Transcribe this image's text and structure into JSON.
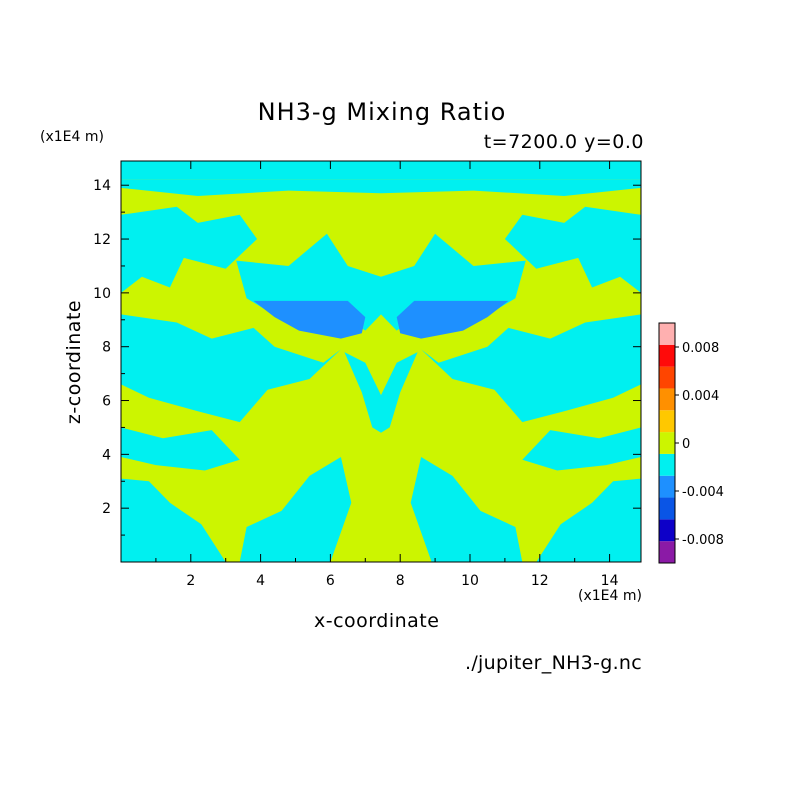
{
  "chart_data": {
    "type": "heatmap",
    "title": "NH3-g Mixing Ratio",
    "subtitle": "t=7200.0 y=0.0",
    "xlabel": "x-coordinate",
    "ylabel": "z-coordinate",
    "x_unit": "(x1E4 m)",
    "y_unit": "(x1E4 m)",
    "source": "./jupiter_NH3-g.nc",
    "xlim": [
      0,
      14.9
    ],
    "ylim": [
      0,
      14.9
    ],
    "x_ticks": [
      2,
      4,
      6,
      8,
      10,
      12,
      14
    ],
    "y_ticks": [
      2,
      4,
      6,
      8,
      10,
      12,
      14
    ],
    "colorbar": {
      "levels": [
        -0.01,
        -0.008,
        -0.006,
        -0.004,
        -0.002,
        0,
        0.002,
        0.004,
        0.006,
        0.008,
        0.01
      ],
      "colors": [
        "#8B1AA6",
        "#0D00C8",
        "#0A55E6",
        "#1E90FF",
        "#00F0F0",
        "#CCF500",
        "#FFC800",
        "#FF9000",
        "#FF4500",
        "#FF0A0A",
        "#FFB0B0"
      ],
      "tick_values": [
        -0.008,
        -0.004,
        0,
        0.004,
        0.008
      ],
      "tick_labels": [
        "-0.008",
        "-0.004",
        "0",
        "0.004",
        "0.008"
      ]
    },
    "fields": {
      "background": {
        "value": "0 to 0.002",
        "color": "#CCF500"
      },
      "negative_regions": {
        "value": "-0.002 to 0",
        "color": "#00F0F0"
      },
      "strong_negative": {
        "value": "-0.004 to -0.002",
        "color": "#1E90FF"
      }
    },
    "regions": {
      "cyan": [
        [
          [
            0,
            14.2
          ],
          [
            14.9,
            14.2
          ],
          [
            14.9,
            14.9
          ],
          [
            0,
            14.9
          ]
        ],
        [
          [
            0,
            13.9
          ],
          [
            2.2,
            13.6
          ],
          [
            4.8,
            13.8
          ],
          [
            7.45,
            13.7
          ],
          [
            10.1,
            13.8
          ],
          [
            12.7,
            13.6
          ],
          [
            14.9,
            13.9
          ],
          [
            14.9,
            14.2
          ],
          [
            0,
            14.2
          ]
        ],
        [
          [
            0,
            12.9
          ],
          [
            1.6,
            13.2
          ],
          [
            2.2,
            12.6
          ],
          [
            3.4,
            12.9
          ],
          [
            3.9,
            12.0
          ],
          [
            3.0,
            10.9
          ],
          [
            1.8,
            11.3
          ],
          [
            1.4,
            10.2
          ],
          [
            0.6,
            10.6
          ],
          [
            0,
            10.0
          ]
        ],
        [
          [
            14.9,
            12.9
          ],
          [
            13.3,
            13.2
          ],
          [
            12.7,
            12.6
          ],
          [
            11.5,
            12.9
          ],
          [
            11.0,
            12.0
          ],
          [
            11.9,
            10.9
          ],
          [
            13.1,
            11.3
          ],
          [
            13.5,
            10.2
          ],
          [
            14.3,
            10.6
          ],
          [
            14.9,
            10.0
          ]
        ],
        [
          [
            3.6,
            9.8
          ],
          [
            4.5,
            9.1
          ],
          [
            5.9,
            9.6
          ],
          [
            7.0,
            8.6
          ],
          [
            7.45,
            9.2
          ],
          [
            7.9,
            8.6
          ],
          [
            9.0,
            9.6
          ],
          [
            10.4,
            9.1
          ],
          [
            11.3,
            9.8
          ],
          [
            11.6,
            11.2
          ],
          [
            10.1,
            11.0
          ],
          [
            9.0,
            12.2
          ],
          [
            8.4,
            11.0
          ],
          [
            7.45,
            10.6
          ],
          [
            6.5,
            11.0
          ],
          [
            5.9,
            12.2
          ],
          [
            4.8,
            11.0
          ],
          [
            3.3,
            11.2
          ]
        ],
        [
          [
            0,
            9.2
          ],
          [
            1.6,
            8.9
          ],
          [
            2.6,
            8.3
          ],
          [
            3.8,
            8.7
          ],
          [
            4.4,
            8.0
          ],
          [
            5.8,
            7.4
          ],
          [
            6.3,
            7.9
          ],
          [
            5.4,
            6.8
          ],
          [
            4.2,
            6.4
          ],
          [
            3.4,
            5.2
          ],
          [
            2.2,
            5.6
          ],
          [
            0.8,
            6.1
          ],
          [
            0,
            6.6
          ]
        ],
        [
          [
            14.9,
            9.2
          ],
          [
            13.3,
            8.9
          ],
          [
            12.3,
            8.3
          ],
          [
            11.1,
            8.7
          ],
          [
            10.5,
            8.0
          ],
          [
            9.1,
            7.4
          ],
          [
            8.6,
            7.9
          ],
          [
            9.5,
            6.8
          ],
          [
            10.7,
            6.4
          ],
          [
            11.5,
            5.2
          ],
          [
            12.7,
            5.6
          ],
          [
            14.1,
            6.1
          ],
          [
            14.9,
            6.6
          ]
        ],
        [
          [
            6.4,
            7.8
          ],
          [
            7.0,
            7.4
          ],
          [
            7.45,
            6.2
          ],
          [
            7.9,
            7.4
          ],
          [
            8.5,
            7.8
          ],
          [
            8.0,
            6.3
          ],
          [
            7.7,
            5.0
          ],
          [
            7.45,
            4.8
          ],
          [
            7.2,
            5.0
          ],
          [
            6.9,
            6.3
          ]
        ],
        [
          [
            0,
            3.1
          ],
          [
            0.8,
            3.0
          ],
          [
            1.4,
            2.2
          ],
          [
            2.3,
            1.4
          ],
          [
            3.0,
            0
          ],
          [
            0,
            0
          ]
        ],
        [
          [
            14.9,
            3.1
          ],
          [
            14.1,
            3.0
          ],
          [
            13.5,
            2.2
          ],
          [
            12.6,
            1.4
          ],
          [
            11.9,
            0
          ],
          [
            14.9,
            0
          ]
        ],
        [
          [
            3.4,
            0
          ],
          [
            3.6,
            1.3
          ],
          [
            4.6,
            1.9
          ],
          [
            5.4,
            3.2
          ],
          [
            6.3,
            3.9
          ],
          [
            6.6,
            2.2
          ],
          [
            6.0,
            0
          ]
        ],
        [
          [
            11.5,
            0
          ],
          [
            11.3,
            1.3
          ],
          [
            10.3,
            1.9
          ],
          [
            9.5,
            3.2
          ],
          [
            8.6,
            3.9
          ],
          [
            8.3,
            2.2
          ],
          [
            8.9,
            0
          ]
        ],
        [
          [
            0,
            5.0
          ],
          [
            1.2,
            4.6
          ],
          [
            2.6,
            4.9
          ],
          [
            3.4,
            3.8
          ],
          [
            2.4,
            3.4
          ],
          [
            1.0,
            3.6
          ],
          [
            0,
            3.9
          ]
        ],
        [
          [
            14.9,
            5.0
          ],
          [
            13.7,
            4.6
          ],
          [
            12.3,
            4.9
          ],
          [
            11.5,
            3.8
          ],
          [
            12.5,
            3.4
          ],
          [
            13.9,
            3.6
          ],
          [
            14.9,
            3.9
          ]
        ]
      ],
      "blue": [
        [
          [
            3.8,
            9.7
          ],
          [
            6.5,
            9.7
          ],
          [
            7.0,
            9.1
          ],
          [
            6.9,
            8.5
          ],
          [
            6.3,
            8.3
          ],
          [
            5.1,
            8.6
          ],
          [
            4.4,
            9.1
          ]
        ],
        [
          [
            11.1,
            9.7
          ],
          [
            8.4,
            9.7
          ],
          [
            7.9,
            9.1
          ],
          [
            8.0,
            8.5
          ],
          [
            8.6,
            8.3
          ],
          [
            9.8,
            8.6
          ],
          [
            10.5,
            9.1
          ]
        ]
      ]
    }
  }
}
